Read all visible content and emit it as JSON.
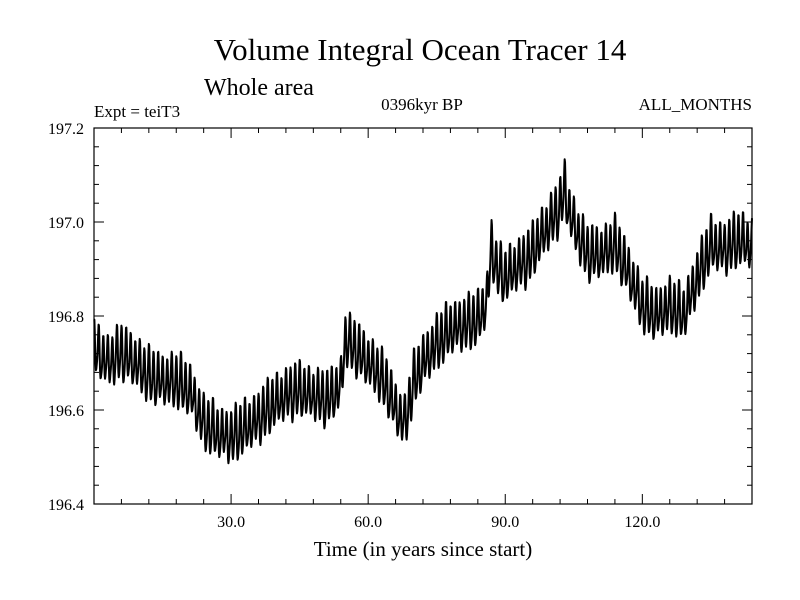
{
  "chart_data": {
    "type": "line",
    "title": "Volume Integral Ocean Tracer 14",
    "subtitle": "Whole area",
    "left_label": "Expt = teiT3",
    "center_label": "0396kyr BP",
    "right_label": "ALL_MONTHS",
    "xlabel": "Time (in years since start)",
    "ylabel": "",
    "xlim": [
      0,
      144
    ],
    "ylim": [
      196.4,
      197.2
    ],
    "x_ticks": [
      30,
      60,
      90,
      120
    ],
    "x_tick_labels": [
      "30.0",
      "60.0",
      "90.0",
      "120.0"
    ],
    "y_ticks": [
      196.4,
      196.6,
      196.8,
      197.0,
      197.2
    ],
    "y_tick_labels": [
      "196.4",
      "196.6",
      "196.8",
      "197.0",
      "197.2"
    ],
    "grid": false,
    "line_color": "#000000",
    "seasonal_amplitude": 0.05,
    "series": [
      {
        "x": [
          0,
          3,
          6,
          9,
          12,
          15,
          18,
          21,
          24,
          27,
          30,
          33,
          36,
          39,
          42,
          45,
          48,
          51,
          54,
          55,
          57,
          60,
          62,
          64,
          66,
          68,
          70,
          72,
          75,
          78,
          81,
          84,
          86,
          87,
          88,
          90,
          92,
          95,
          98,
          100,
          102,
          103,
          104,
          106,
          108,
          111,
          114,
          117,
          120,
          123,
          126,
          129,
          132,
          135,
          138,
          141,
          144
        ],
        "values": [
          196.73,
          196.7,
          196.72,
          196.7,
          196.67,
          196.66,
          196.66,
          196.64,
          196.57,
          196.55,
          196.54,
          196.56,
          196.58,
          196.61,
          196.63,
          196.64,
          196.63,
          196.62,
          196.65,
          196.75,
          196.73,
          196.7,
          196.68,
          196.65,
          196.6,
          196.57,
          196.66,
          196.7,
          196.74,
          196.77,
          196.78,
          196.79,
          196.83,
          196.95,
          196.9,
          196.88,
          196.9,
          196.92,
          196.97,
          197.0,
          197.03,
          197.07,
          197.02,
          196.97,
          196.93,
          196.93,
          196.95,
          196.89,
          196.82,
          196.8,
          196.82,
          196.8,
          196.88,
          196.95,
          196.94,
          196.96,
          196.95
        ]
      }
    ]
  }
}
